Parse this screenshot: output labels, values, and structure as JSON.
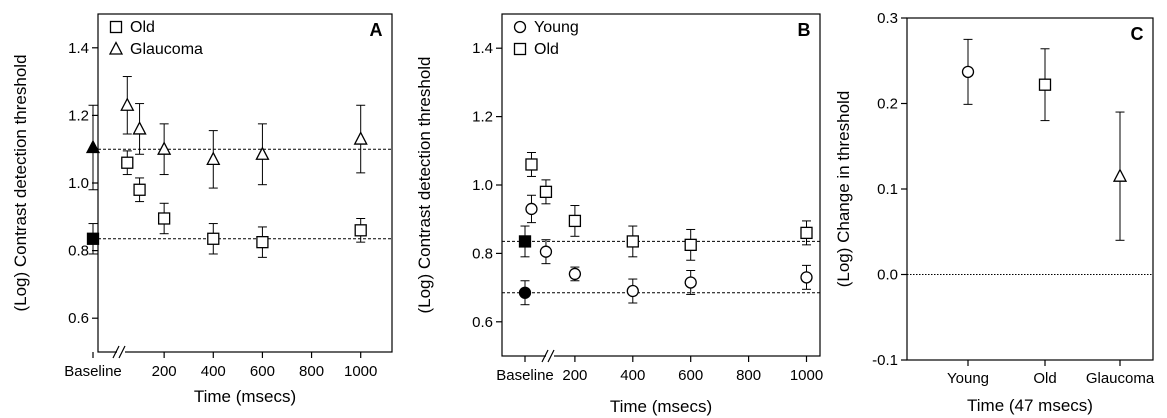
{
  "figure": {
    "panels": [
      "A",
      "B",
      "C"
    ]
  },
  "chart_data": [
    {
      "type": "scatter",
      "panel": "A",
      "xlabel": "Time (msecs)",
      "ylabel": "(Log) Contrast detection threshold",
      "ylim": [
        0.5,
        1.5
      ],
      "yticks": [
        0.6,
        0.8,
        1.0,
        1.2,
        1.4
      ],
      "ytick_labels": [
        "0.6",
        "0.8",
        "1.0",
        "1.2",
        "1.4"
      ],
      "xticks": [
        200,
        400,
        600,
        800,
        1000
      ],
      "baseline_label": "Baseline",
      "axis_break": true,
      "legend": [
        "Old",
        "Glaucoma"
      ],
      "legend_position": "top-left",
      "reference_lines": [
        0.835,
        1.1
      ],
      "series": [
        {
          "name": "Old",
          "marker": "square",
          "baseline": {
            "y": 0.835,
            "err": 0.045
          },
          "points": [
            {
              "x": 50,
              "y": 1.06,
              "err": 0.035
            },
            {
              "x": 100,
              "y": 0.98,
              "err": 0.035
            },
            {
              "x": 200,
              "y": 0.895,
              "err": 0.045
            },
            {
              "x": 400,
              "y": 0.835,
              "err": 0.045
            },
            {
              "x": 600,
              "y": 0.825,
              "err": 0.045
            },
            {
              "x": 1000,
              "y": 0.86,
              "err": 0.035
            }
          ]
        },
        {
          "name": "Glaucoma",
          "marker": "triangle",
          "baseline": {
            "y": 1.105,
            "err": 0.125
          },
          "points": [
            {
              "x": 50,
              "y": 1.23,
              "err": 0.085
            },
            {
              "x": 100,
              "y": 1.16,
              "err": 0.075
            },
            {
              "x": 200,
              "y": 1.1,
              "err": 0.075
            },
            {
              "x": 400,
              "y": 1.07,
              "err": 0.085
            },
            {
              "x": 600,
              "y": 1.085,
              "err": 0.09
            },
            {
              "x": 1000,
              "y": 1.13,
              "err": 0.1
            }
          ]
        }
      ]
    },
    {
      "type": "scatter",
      "panel": "B",
      "xlabel": "Time (msecs)",
      "ylabel": "(Log) Contrast detection threshold",
      "ylim": [
        0.5,
        1.5
      ],
      "yticks": [
        0.6,
        0.8,
        1.0,
        1.2,
        1.4
      ],
      "ytick_labels": [
        "0.6",
        "0.8",
        "1.0",
        "1.2",
        "1.4"
      ],
      "xticks": [
        200,
        400,
        600,
        800,
        1000
      ],
      "baseline_label": "Baseline",
      "axis_break": true,
      "legend": [
        "Young",
        "Old"
      ],
      "legend_position": "top-left",
      "reference_lines": [
        0.835,
        0.685
      ],
      "series": [
        {
          "name": "Young",
          "marker": "circle",
          "baseline": {
            "y": 0.685,
            "err": 0.035
          },
          "points": [
            {
              "x": 50,
              "y": 0.93,
              "err": 0.04
            },
            {
              "x": 100,
              "y": 0.805,
              "err": 0.035
            },
            {
              "x": 200,
              "y": 0.74,
              "err": 0.02
            },
            {
              "x": 400,
              "y": 0.69,
              "err": 0.035
            },
            {
              "x": 600,
              "y": 0.715,
              "err": 0.035
            },
            {
              "x": 1000,
              "y": 0.73,
              "err": 0.035
            }
          ]
        },
        {
          "name": "Old",
          "marker": "square",
          "baseline": {
            "y": 0.835,
            "err": 0.045
          },
          "points": [
            {
              "x": 50,
              "y": 1.06,
              "err": 0.035
            },
            {
              "x": 100,
              "y": 0.98,
              "err": 0.035
            },
            {
              "x": 200,
              "y": 0.895,
              "err": 0.045
            },
            {
              "x": 400,
              "y": 0.835,
              "err": 0.045
            },
            {
              "x": 600,
              "y": 0.825,
              "err": 0.045
            },
            {
              "x": 1000,
              "y": 0.86,
              "err": 0.035
            }
          ]
        }
      ]
    },
    {
      "type": "scatter",
      "panel": "C",
      "xlabel": "Time (47 msecs)",
      "ylabel": "(Log) Change in threshold",
      "ylim": [
        -0.1,
        0.3
      ],
      "yticks": [
        -0.1,
        0.0,
        0.1,
        0.2,
        0.3
      ],
      "ytick_labels": [
        "-0.1",
        "0.0",
        "0.1",
        "0.2",
        "0.3"
      ],
      "categories": [
        "Young",
        "Old",
        "Glaucoma"
      ],
      "reference_lines": [
        0.0
      ],
      "points": [
        {
          "category": "Young",
          "marker": "circle",
          "y": 0.237,
          "err": 0.038
        },
        {
          "category": "Old",
          "marker": "square",
          "y": 0.222,
          "err": 0.042
        },
        {
          "category": "Glaucoma",
          "marker": "triangle",
          "y": 0.115,
          "err": 0.075
        }
      ]
    }
  ]
}
